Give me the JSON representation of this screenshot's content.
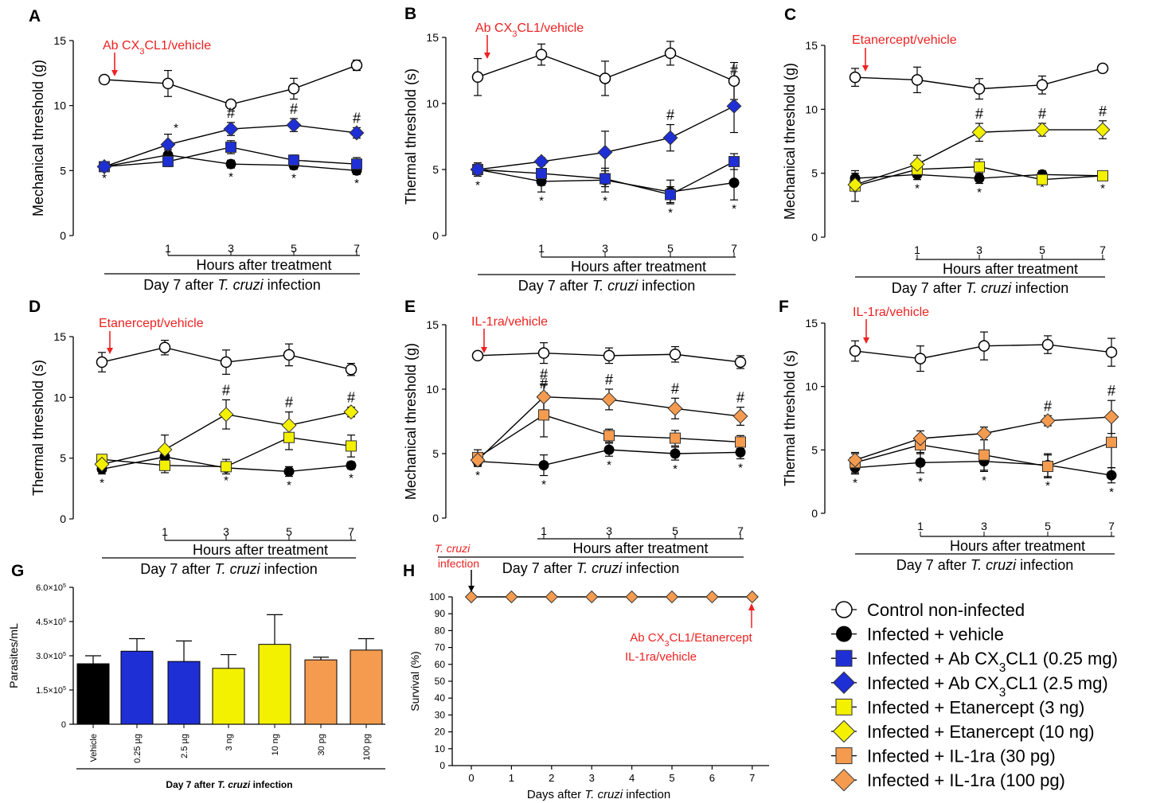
{
  "colors": {
    "control": "#ffffff",
    "vehicle": "#000000",
    "ab_low": "#1f2fd6",
    "ab_high": "#1f2fd6",
    "etan_3": "#f3f000",
    "etan_10": "#f3f000",
    "il1ra_30": "#f59b4f",
    "il1ra_100": "#f59b4f",
    "annotation": "#ee2222"
  },
  "legend": [
    {
      "key": "control",
      "text": "Control  non-infected"
    },
    {
      "key": "vehicle",
      "text": "Infected + vehicle"
    },
    {
      "key": "ab_low",
      "text": "Infected + Ab CX",
      "sub": "3",
      "rest": "CL1 (0.25 mg)"
    },
    {
      "key": "ab_high",
      "text": "Infected + Ab CX",
      "sub": "3",
      "rest": "CL1 (2.5 mg)"
    },
    {
      "key": "etan_3",
      "text": "Infected + Etanercept (3 ng)"
    },
    {
      "key": "etan_10",
      "text": "Infected + Etanercept (10 ng)"
    },
    {
      "key": "il1ra_30",
      "text": "Infected + IL-1ra (30 pg)"
    },
    {
      "key": "il1ra_100",
      "text": "Infected + IL-1ra (100 pg)"
    }
  ],
  "chart_data": [
    {
      "panel": "A",
      "type": "line",
      "ylabel": "Mechanical threshold (g)",
      "ylim": [
        0,
        15
      ],
      "yticks": [
        0,
        5,
        10,
        15
      ],
      "x": [
        "",
        "1",
        "3",
        "5",
        "7"
      ],
      "xlabel_hours": "Hours after treatment",
      "xlabel_day": {
        "pre": "Day 7 after ",
        "italic": "T. cruzi",
        "post": " infection"
      },
      "annotation": {
        "pre": "Ab CX",
        "sub": "3",
        "post": "CL1/vehicle"
      },
      "series": [
        {
          "key": "control",
          "values": [
            12.0,
            11.7,
            10.1,
            11.3,
            13.1
          ],
          "err": [
            0.3,
            1.0,
            0.3,
            0.8,
            0.4
          ]
        },
        {
          "key": "vehicle",
          "values": [
            5.3,
            6.2,
            5.5,
            5.4,
            5.0
          ],
          "err": [
            0.2,
            0.4,
            0.3,
            0.3,
            0.3
          ],
          "marks": [
            "*",
            "",
            "*",
            "*",
            "*"
          ]
        },
        {
          "key": "ab_low",
          "values": [
            5.3,
            5.7,
            6.8,
            5.8,
            5.5
          ],
          "err": [
            0.2,
            0.4,
            0.5,
            0.4,
            0.5
          ]
        },
        {
          "key": "ab_high",
          "values": [
            5.3,
            7.0,
            8.2,
            8.5,
            7.9
          ],
          "err": [
            0.2,
            0.8,
            0.5,
            0.5,
            0.4
          ],
          "marks": [
            "",
            "*",
            "#",
            "#",
            "#"
          ]
        }
      ]
    },
    {
      "panel": "B",
      "type": "line",
      "ylabel": "Thermal threshold (s)",
      "ylim": [
        0,
        15
      ],
      "yticks": [
        0,
        5,
        10,
        15
      ],
      "x": [
        "",
        "1",
        "3",
        "5",
        "7"
      ],
      "xlabel_hours": "Hours after treatment",
      "xlabel_day": {
        "pre": "Day 7 after ",
        "italic": "T. cruzi",
        "post": " infection"
      },
      "annotation": {
        "pre": "Ab CX",
        "sub": "3",
        "post": "CL1/vehicle"
      },
      "series": [
        {
          "key": "control",
          "values": [
            12.0,
            13.7,
            11.9,
            13.8,
            11.7
          ],
          "err": [
            1.4,
            0.8,
            1.3,
            0.9,
            1.4
          ]
        },
        {
          "key": "vehicle",
          "values": [
            5.0,
            4.1,
            4.2,
            3.3,
            4.0
          ],
          "err": [
            0.5,
            0.8,
            0.9,
            0.9,
            1.3
          ],
          "marks": [
            "*",
            "*",
            "*",
            "*",
            "*"
          ]
        },
        {
          "key": "ab_low",
          "values": [
            5.0,
            4.7,
            4.3,
            3.1,
            5.6
          ],
          "err": [
            0.5,
            0.9,
            0.6,
            0.6,
            0.6
          ]
        },
        {
          "key": "ab_high",
          "values": [
            5.0,
            5.6,
            6.3,
            7.4,
            9.8
          ],
          "err": [
            0.5,
            0.3,
            1.6,
            1.0,
            2.0
          ],
          "marks": [
            "",
            "",
            "",
            "#",
            "#"
          ]
        }
      ]
    },
    {
      "panel": "C",
      "type": "line",
      "ylabel": "Mechanical threshold (g)",
      "ylim": [
        0,
        15
      ],
      "yticks": [
        0,
        5,
        10,
        15
      ],
      "x": [
        "",
        "1",
        "3",
        "5",
        "7"
      ],
      "xlabel_hours": "Hours after treatment",
      "xlabel_day": {
        "pre": "Day 7 after ",
        "italic": "T. cruzi",
        "post": " infection"
      },
      "annotation": {
        "pre": "Etanercept/vehicle"
      },
      "series": [
        {
          "key": "control",
          "values": [
            12.5,
            12.3,
            11.6,
            11.9,
            13.2
          ],
          "err": [
            0.7,
            1.0,
            0.8,
            0.7,
            0.3
          ]
        },
        {
          "key": "vehicle",
          "values": [
            4.6,
            4.9,
            4.6,
            4.9,
            4.8
          ],
          "err": [
            0.4,
            0.4,
            0.4,
            0.3,
            0.3
          ],
          "marks": [
            "*",
            "*",
            "*",
            "*",
            "*"
          ]
        },
        {
          "key": "etan_3",
          "values": [
            4.0,
            5.3,
            5.5,
            4.5,
            4.8
          ],
          "err": [
            1.2,
            0.5,
            0.6,
            0.3,
            0.3
          ]
        },
        {
          "key": "etan_10",
          "values": [
            4.1,
            5.7,
            8.2,
            8.4,
            8.4
          ],
          "err": [
            0.4,
            0.7,
            0.7,
            0.5,
            0.7
          ],
          "marks": [
            "",
            "",
            "#",
            "#",
            "#"
          ]
        }
      ]
    },
    {
      "panel": "D",
      "type": "line",
      "ylabel": "Thermal threshold (s)",
      "ylim": [
        0,
        15
      ],
      "yticks": [
        0,
        5,
        10,
        15
      ],
      "x": [
        "",
        "1",
        "3",
        "5",
        "7"
      ],
      "xlabel_hours": "Hours after treatment",
      "xlabel_day": {
        "pre": "Day 7 after ",
        "italic": "T. cruzi",
        "post": " infection"
      },
      "annotation": {
        "pre": "Etanercept/vehicle"
      },
      "series": [
        {
          "key": "control",
          "values": [
            12.9,
            14.1,
            12.9,
            13.5,
            12.3
          ],
          "err": [
            0.8,
            0.6,
            1.0,
            0.9,
            0.5
          ]
        },
        {
          "key": "vehicle",
          "values": [
            4.1,
            5.1,
            4.2,
            3.9,
            4.4
          ],
          "err": [
            0.4,
            0.4,
            0.3,
            0.4,
            0.3
          ],
          "marks": [
            "*",
            "*",
            "*",
            "*",
            "*"
          ]
        },
        {
          "key": "etan_3",
          "values": [
            4.9,
            4.4,
            4.3,
            6.7,
            6.0
          ],
          "err": [
            0.3,
            0.6,
            0.6,
            1.0,
            0.9
          ]
        },
        {
          "key": "etan_10",
          "values": [
            4.5,
            5.7,
            8.6,
            7.7,
            8.8
          ],
          "err": [
            0.3,
            1.2,
            1.2,
            1.1,
            0.4
          ],
          "marks": [
            "",
            "",
            "#",
            "#",
            "#"
          ]
        }
      ]
    },
    {
      "panel": "E",
      "type": "line",
      "ylabel": "Mechanical threshold (g)",
      "ylim": [
        0,
        15
      ],
      "yticks": [
        0,
        5,
        10,
        15
      ],
      "x": [
        "",
        "1",
        "3",
        "5",
        "7"
      ],
      "xlabel_hours": "Hours after treatment",
      "xlabel_day": {
        "pre": "Day 7 after ",
        "italic": "T. cruzi",
        "post": " infection"
      },
      "annotation": {
        "pre": "IL-1ra/vehicle"
      },
      "series": [
        {
          "key": "control",
          "values": [
            12.6,
            12.8,
            12.6,
            12.7,
            12.1
          ],
          "err": [
            0.2,
            0.8,
            0.6,
            0.6,
            0.5
          ]
        },
        {
          "key": "vehicle",
          "values": [
            4.4,
            4.1,
            5.3,
            5.0,
            5.1
          ],
          "err": [
            0.4,
            0.8,
            0.5,
            0.5,
            0.5
          ],
          "marks": [
            "*",
            "*",
            "*",
            "*",
            "*"
          ]
        },
        {
          "key": "il1ra_30",
          "values": [
            4.7,
            8.0,
            6.4,
            6.2,
            5.9
          ],
          "err": [
            0.6,
            1.7,
            0.5,
            0.6,
            0.5
          ],
          "marks": [
            "",
            "#",
            "",
            "",
            ""
          ]
        },
        {
          "key": "il1ra_100",
          "values": [
            4.5,
            9.4,
            9.2,
            8.5,
            7.9
          ],
          "err": [
            0.4,
            1.0,
            0.8,
            0.8,
            0.7
          ],
          "marks": [
            "",
            "#",
            "#",
            "#",
            "#"
          ]
        }
      ]
    },
    {
      "panel": "F",
      "type": "line",
      "ylabel": "Thermal threshold (s)",
      "ylim": [
        0,
        15
      ],
      "yticks": [
        0,
        5,
        10,
        15
      ],
      "x": [
        "",
        "1",
        "3",
        "5",
        "7"
      ],
      "xlabel_hours": "Hours after treatment",
      "xlabel_day": {
        "pre": "Day 7 after ",
        "italic": "T. cruzi",
        "post": " infection"
      },
      "annotation": {
        "pre": "IL-1ra/vehicle"
      },
      "series": [
        {
          "key": "control",
          "values": [
            12.8,
            12.2,
            13.2,
            13.3,
            12.7
          ],
          "err": [
            0.8,
            1.0,
            1.1,
            0.7,
            1.1
          ]
        },
        {
          "key": "vehicle",
          "values": [
            3.6,
            4.0,
            4.1,
            3.8,
            3.0
          ],
          "err": [
            0.5,
            0.8,
            0.8,
            0.9,
            0.6
          ],
          "marks": [
            "*",
            "*",
            "*",
            "*",
            "*"
          ]
        },
        {
          "key": "il1ra_30",
          "values": [
            4.0,
            5.4,
            4.6,
            3.7,
            5.6
          ],
          "err": [
            0.8,
            0.7,
            1.2,
            0.9,
            2.0
          ]
        },
        {
          "key": "il1ra_100",
          "values": [
            4.2,
            5.9,
            6.3,
            7.3,
            7.6
          ],
          "err": [
            0.5,
            0.6,
            0.5,
            0.4,
            1.3
          ],
          "marks": [
            "",
            "",
            "",
            "#",
            "#"
          ]
        }
      ]
    },
    {
      "panel": "G",
      "type": "bar",
      "ylabel": "Parasites/mL",
      "ylim": [
        0,
        600000
      ],
      "yticks": [
        0,
        150000,
        300000,
        450000,
        600000
      ],
      "ytick_labels": [
        {
          "text": "0"
        },
        {
          "pre": "1.5×10",
          "sup": "5"
        },
        {
          "pre": "3.0×10",
          "sup": "5"
        },
        {
          "pre": "4.5×10",
          "sup": "5"
        },
        {
          "pre": "6.0×10",
          "sup": "5"
        }
      ],
      "categories": [
        "Vehicle",
        "0.25 µg",
        "2.5 µg",
        "3 ng",
        "10 ng",
        "30 pg",
        "100 pg"
      ],
      "values": [
        265000,
        320000,
        275000,
        245000,
        350000,
        282000,
        325000
      ],
      "err": [
        35000,
        55000,
        90000,
        60000,
        130000,
        12000,
        50000
      ],
      "bar_keys": [
        "vehicle",
        "ab_low",
        "ab_low",
        "etan_3",
        "etan_3",
        "il1ra_30",
        "il1ra_30"
      ],
      "xlabel": {
        "pre": "Day 7 after ",
        "italic": "T. cruzi",
        "post": " infection"
      }
    },
    {
      "panel": "H",
      "type": "line",
      "ylabel": "Survival (%)",
      "ylim": [
        0,
        100
      ],
      "yticks": [
        0,
        10,
        20,
        30,
        40,
        50,
        60,
        70,
        80,
        90,
        100
      ],
      "x": [
        0,
        1,
        2,
        3,
        4,
        5,
        6,
        7
      ],
      "values": [
        100,
        100,
        100,
        100,
        100,
        100,
        100,
        100
      ],
      "xlabel": {
        "pre": "Days after ",
        "italic": "T. cruzi",
        "post": " infection"
      },
      "ann_left": {
        "l1": "T. cruzi",
        "l2": "infection"
      },
      "ann_right": {
        "l1pre": "Ab CX",
        "l1sub": "3",
        "l1post": "CL1/Etanercept",
        "l2": "IL-1ra/vehicle"
      }
    }
  ]
}
